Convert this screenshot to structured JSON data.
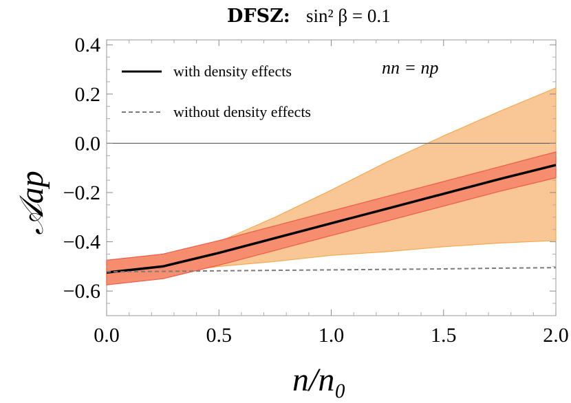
{
  "chart_data": {
    "type": "line",
    "title": {
      "bold": "DFSZ:",
      "math": "sin² β = 0.1"
    },
    "xlabel": "n/n₀",
    "ylabel": "𝒜ap",
    "xlim": [
      0,
      2
    ],
    "ylim": [
      -0.7,
      0.42
    ],
    "xticks": [
      "0.0",
      "0.5",
      "1.0",
      "1.5",
      "2.0"
    ],
    "yticks": [
      "0.4",
      "0.2",
      "0.0",
      "−0.2",
      "−0.4",
      "−0.6"
    ],
    "zero_line": true,
    "annotation": "nn = np",
    "legend": {
      "position": "top-left",
      "entries": [
        "with density effects",
        "without density effects"
      ]
    },
    "x": [
      0,
      0.25,
      0.5,
      0.75,
      1.0,
      1.25,
      1.5,
      1.75,
      2.0
    ],
    "series": [
      {
        "name": "with density effects",
        "style": "solid",
        "color": "#000000",
        "values": [
          -0.525,
          -0.5,
          -0.445,
          -0.385,
          -0.325,
          -0.265,
          -0.205,
          -0.145,
          -0.088
        ]
      },
      {
        "name": "without density effects",
        "style": "dashed",
        "color": "#7a7a7a",
        "values": [
          -0.522,
          -0.52,
          -0.518,
          -0.516,
          -0.514,
          -0.512,
          -0.51,
          -0.507,
          -0.505
        ]
      }
    ],
    "bands": [
      {
        "color": "#f9c48f",
        "edge": "#f5a950",
        "upper": [
          -0.485,
          -0.46,
          -0.4,
          -0.3,
          -0.19,
          -0.075,
          0.03,
          0.13,
          0.225
        ],
        "lower": [
          -0.56,
          -0.53,
          -0.5,
          -0.48,
          -0.455,
          -0.44,
          -0.42,
          -0.405,
          -0.395
        ]
      },
      {
        "color": "#f58a6c",
        "edge": "#f15a42",
        "upper": [
          -0.475,
          -0.45,
          -0.395,
          -0.335,
          -0.275,
          -0.215,
          -0.155,
          -0.095,
          -0.035
        ],
        "lower": [
          -0.575,
          -0.55,
          -0.495,
          -0.435,
          -0.375,
          -0.315,
          -0.255,
          -0.195,
          -0.14
        ]
      }
    ]
  }
}
